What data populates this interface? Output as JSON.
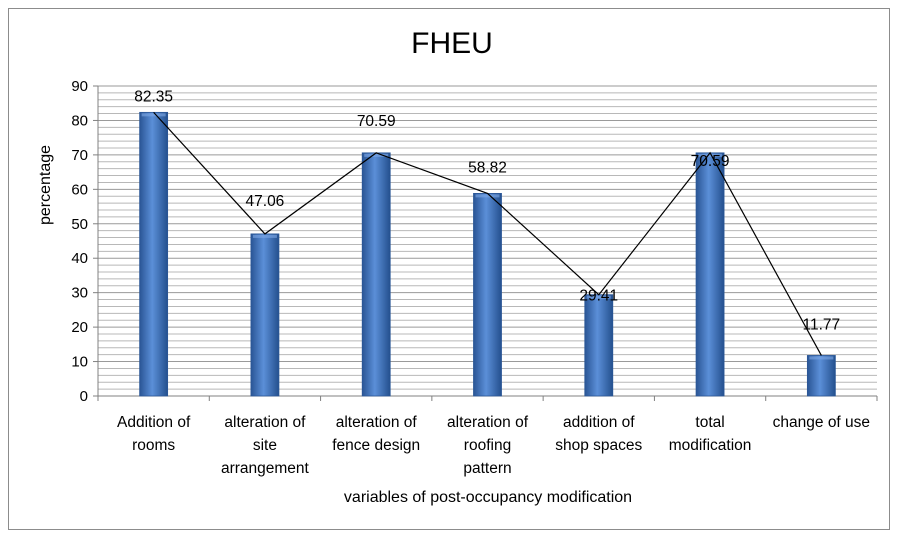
{
  "chart_data": {
    "type": "bar",
    "title": "FHEU",
    "xlabel": "variables of post-occupancy modification",
    "ylabel": "percentage",
    "ylim": [
      0,
      90
    ],
    "yticks": [
      0,
      10,
      20,
      30,
      40,
      50,
      60,
      70,
      80,
      90
    ],
    "grid": true,
    "categories": [
      [
        "Addition of",
        "rooms"
      ],
      [
        "alteration of",
        "site",
        "arrangement"
      ],
      [
        "alteration of",
        "fence design"
      ],
      [
        "alteration of",
        "roofing",
        "pattern"
      ],
      [
        "addition of",
        "shop spaces"
      ],
      [
        "total",
        "modification"
      ],
      [
        "change of use"
      ]
    ],
    "values": [
      82.35,
      47.06,
      70.59,
      58.82,
      29.41,
      70.59,
      11.77
    ],
    "labels": [
      "82.35",
      "47.06",
      "70.59",
      "58.82",
      "29.41",
      "70.59",
      "11.77"
    ],
    "overlay_line": true,
    "bar_color": "#3f6fb8",
    "line_color": "#000000"
  }
}
